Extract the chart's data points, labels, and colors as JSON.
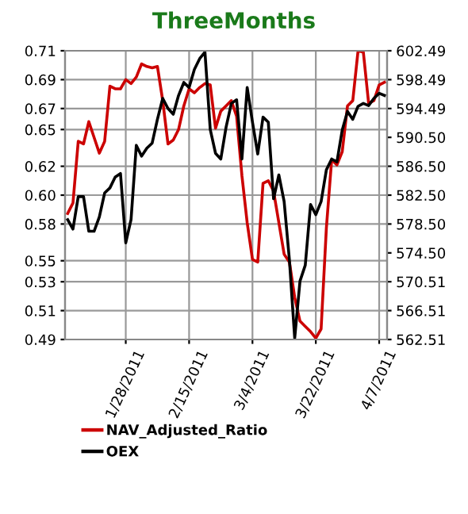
{
  "chart_data": {
    "type": "line",
    "title": "ThreeMonths",
    "categories": [
      null,
      null,
      null,
      null,
      null,
      null,
      null,
      null,
      null,
      null,
      null,
      "1/28/2011",
      null,
      null,
      null,
      null,
      null,
      null,
      null,
      null,
      null,
      null,
      null,
      "2/15/2011",
      null,
      null,
      null,
      null,
      null,
      null,
      null,
      null,
      null,
      null,
      null,
      "3/4/2011",
      null,
      null,
      null,
      null,
      null,
      null,
      null,
      null,
      null,
      null,
      null,
      "3/22/2011",
      null,
      null,
      null,
      null,
      null,
      null,
      null,
      null,
      null,
      null,
      null,
      "4/7/2011",
      null
    ],
    "series": [
      {
        "name": "NAV_Adjusted_Ratio",
        "color": "#cc0000",
        "values": [
          0.586,
          0.594,
          0.641,
          0.639,
          0.656,
          0.644,
          0.632,
          0.641,
          0.683,
          0.681,
          0.681,
          0.688,
          0.685,
          0.69,
          0.7,
          0.698,
          0.697,
          0.698,
          0.672,
          0.639,
          0.642,
          0.65,
          0.668,
          0.681,
          0.678,
          0.682,
          0.685,
          0.684,
          0.651,
          0.664,
          0.668,
          0.672,
          0.66,
          0.615,
          0.579,
          0.551,
          0.549,
          0.609,
          0.611,
          0.603,
          0.579,
          0.555,
          0.549,
          0.522,
          0.504,
          0.5,
          0.496,
          0.491,
          0.498,
          0.575,
          0.627,
          0.623,
          0.633,
          0.668,
          0.672,
          0.71,
          0.709,
          0.67,
          0.672,
          0.684,
          0.686
        ]
      },
      {
        "name": "OEX",
        "color": "#000000",
        "axis": "y2",
        "values": [
          579.1,
          577.8,
          582.3,
          582.3,
          577.5,
          577.5,
          579.5,
          582.8,
          583.5,
          585.0,
          585.5,
          575.9,
          579.1,
          589.4,
          587.9,
          589.0,
          589.7,
          593.0,
          595.9,
          594.5,
          593.7,
          596.3,
          598.1,
          597.4,
          599.9,
          601.4,
          602.3,
          591.6,
          588.3,
          587.5,
          591.9,
          595.2,
          595.7,
          587.5,
          597.4,
          592.6,
          588.2,
          593.3,
          592.6,
          582.0,
          585.3,
          581.6,
          573.5,
          562.7,
          570.6,
          572.8,
          581.2,
          579.8,
          581.6,
          586.0,
          587.5,
          587.1,
          591.5,
          594.1,
          593.0,
          594.8,
          595.2,
          594.9,
          595.9,
          596.6,
          596.3
        ]
      }
    ],
    "ylim": [
      0.49,
      0.71
    ],
    "yticks": [
      {
        "value": 0.49,
        "label": "0.49"
      },
      {
        "value": 0.512,
        "label": "0.51"
      },
      {
        "value": 0.534,
        "label": "0.53"
      },
      {
        "value": 0.55,
        "label": "0.55"
      },
      {
        "value": 0.578,
        "label": "0.58"
      },
      {
        "value": 0.6,
        "label": "0.60"
      },
      {
        "value": 0.622,
        "label": "0.62"
      },
      {
        "value": 0.65,
        "label": "0.65"
      },
      {
        "value": 0.666,
        "label": "0.67"
      },
      {
        "value": 0.688,
        "label": "0.69"
      },
      {
        "value": 0.71,
        "label": "0.71"
      }
    ],
    "y2lim": [
      562.51,
      602.49
    ],
    "y2ticks": [
      562.51,
      566.51,
      570.51,
      {
        "value": 574.5,
        "label": "574.50"
      },
      {
        "value": 578.5,
        "label": "578.50"
      },
      {
        "value": 582.5,
        "label": "582.50"
      },
      {
        "value": 586.5,
        "label": "586.50"
      },
      {
        "value": 590.5,
        "label": "590.50"
      },
      594.49,
      598.49,
      602.49
    ],
    "grid": true,
    "legend": "bottom",
    "marker": "none",
    "line_style": "solid"
  }
}
